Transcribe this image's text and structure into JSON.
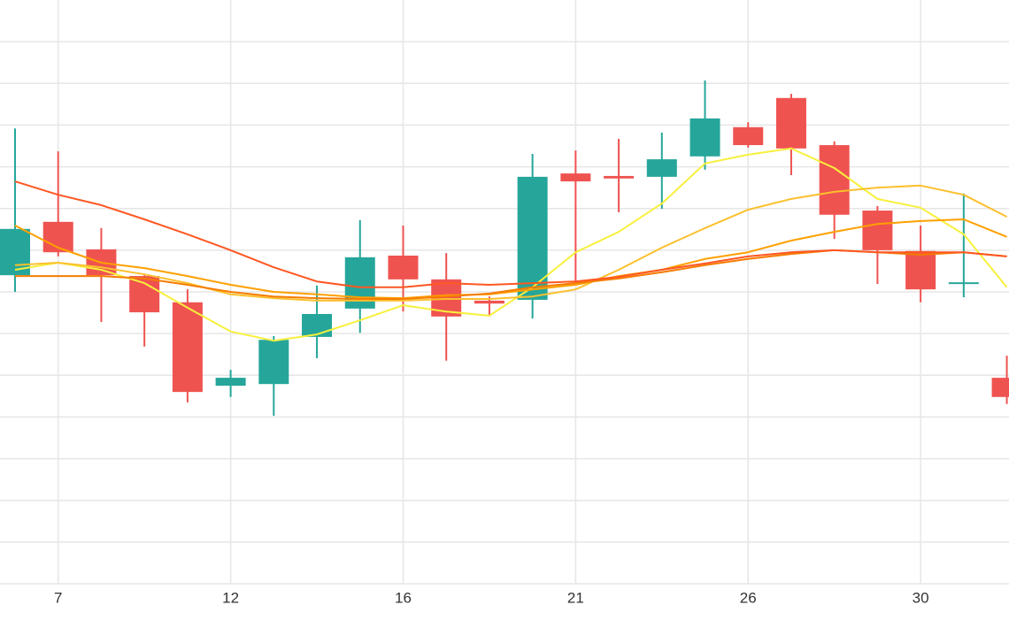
{
  "chart_data": {
    "type": "candlestick",
    "categories": [
      null,
      "7",
      null,
      null,
      null,
      "12",
      null,
      null,
      null,
      "16",
      null,
      null,
      null,
      "21",
      null,
      null,
      null,
      "26",
      null,
      null,
      null,
      "30",
      null,
      null
    ],
    "open": [
      7.4,
      8.68,
      8.02,
      7.38,
      6.75,
      4.75,
      4.79,
      5.92,
      6.6,
      7.87,
      7.3,
      6.79,
      6.81,
      9.84,
      9.78,
      9.76,
      10.25,
      10.95,
      11.65,
      10.52,
      8.95,
      7.98,
      7.21,
      4.94
    ],
    "high": [
      10.92,
      10.37,
      8.53,
      7.4,
      7.06,
      5.13,
      5.94,
      7.15,
      8.72,
      8.59,
      7.93,
      6.89,
      10.31,
      10.39,
      10.67,
      10.82,
      12.07,
      11.07,
      11.75,
      10.61,
      9.06,
      8.59,
      9.36,
      5.47
    ],
    "low": [
      7.0,
      7.85,
      6.28,
      5.69,
      4.35,
      4.48,
      4.03,
      5.41,
      6.02,
      6.53,
      5.35,
      6.41,
      6.36,
      7.17,
      8.91,
      8.99,
      9.93,
      10.46,
      9.8,
      8.27,
      7.19,
      6.75,
      6.87,
      4.31
    ],
    "close": [
      8.51,
      7.95,
      7.4,
      6.51,
      4.6,
      4.94,
      5.85,
      6.47,
      7.83,
      7.3,
      6.41,
      6.72,
      9.76,
      9.65,
      9.72,
      10.18,
      11.16,
      10.52,
      10.44,
      8.85,
      8.0,
      7.06,
      7.23,
      4.48
    ],
    "up_color": "#26a69a",
    "down_color": "#ef5350",
    "overlays": [
      {
        "color": "#f7f03c",
        "values": [
          7.53,
          7.7,
          7.53,
          7.21,
          6.62,
          6.05,
          5.83,
          5.98,
          6.32,
          6.68,
          6.53,
          6.43,
          7.11,
          7.95,
          8.44,
          9.12,
          10.08,
          10.29,
          10.44,
          9.97,
          9.23,
          9.02,
          8.38,
          7.11
        ]
      },
      {
        "color": "#fbc02d",
        "values": [
          7.64,
          7.7,
          7.59,
          7.42,
          7.21,
          6.94,
          6.85,
          6.79,
          6.79,
          6.79,
          6.83,
          6.83,
          6.89,
          7.06,
          7.53,
          8.06,
          8.53,
          8.97,
          9.23,
          9.4,
          9.5,
          9.55,
          9.33,
          8.8
        ]
      },
      {
        "color": "#ffa000",
        "values": [
          8.59,
          8.06,
          7.7,
          7.57,
          7.38,
          7.17,
          7.0,
          6.94,
          6.87,
          6.85,
          6.92,
          6.94,
          7.06,
          7.17,
          7.38,
          7.53,
          7.79,
          7.95,
          8.23,
          8.44,
          8.63,
          8.7,
          8.74,
          8.32
        ]
      },
      {
        "color": "#f57c00",
        "values": [
          7.38,
          7.38,
          7.38,
          7.32,
          7.17,
          7.0,
          6.89,
          6.85,
          6.83,
          6.83,
          6.89,
          6.96,
          7.11,
          7.21,
          7.32,
          7.47,
          7.64,
          7.79,
          7.91,
          8.0,
          7.95,
          7.89,
          7.95,
          7.85
        ]
      },
      {
        "color": "#ff5722",
        "values": [
          9.65,
          9.33,
          9.08,
          8.74,
          8.38,
          8.0,
          7.59,
          7.25,
          7.11,
          7.11,
          7.21,
          7.17,
          7.21,
          7.25,
          7.36,
          7.53,
          7.68,
          7.85,
          7.95,
          8.0,
          7.95,
          7.95,
          7.95,
          7.85
        ]
      }
    ],
    "ylim": [
      0,
      14
    ],
    "yticks": [
      0,
      1,
      2,
      3,
      4,
      5,
      6,
      7,
      8,
      9,
      10,
      11,
      12,
      13
    ],
    "grid": true
  }
}
